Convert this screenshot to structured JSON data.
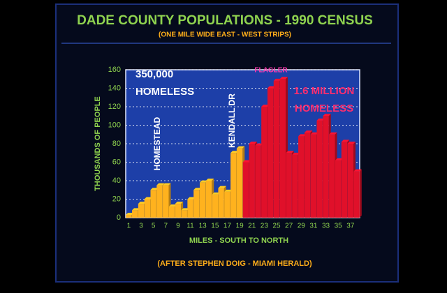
{
  "chart_data": {
    "type": "bar",
    "title": "DADE COUNTY POPULATIONS - 1990 CENSUS",
    "subtitle": "(ONE MILE WIDE EAST - WEST STRIPS)",
    "x_label": "MILES - SOUTH TO NORTH",
    "y_label": "THOUSANDS OF PEOPLE",
    "footer": "(AFTER STEPHEN DOIG - MIAMI HERALD)",
    "annotations": [
      "350,000",
      "HOMELESS",
      "HOMESTEAD",
      "KENDALL DR",
      "FLAGLER",
      "1.6 MILLION",
      "HOMELESS"
    ],
    "categories": [
      "1",
      null,
      "3",
      null,
      "5",
      null,
      "7",
      null,
      "9",
      null,
      "11",
      null,
      "13",
      null,
      "15",
      null,
      "17",
      null,
      "19",
      null,
      "21",
      null,
      "23",
      null,
      "25",
      null,
      "27",
      null,
      "29",
      null,
      "31",
      null,
      "33",
      null,
      "35",
      null,
      "37",
      null
    ],
    "values": [
      3,
      8,
      15,
      20,
      30,
      35,
      35,
      12,
      15,
      8,
      20,
      30,
      38,
      40,
      25,
      32,
      28,
      70,
      75,
      60,
      80,
      78,
      120,
      140,
      148,
      150,
      70,
      68,
      88,
      92,
      90,
      105,
      110,
      90,
      62,
      82,
      80,
      50
    ],
    "colors": [
      "#ffb21e",
      "#ffb21e",
      "#ffb21e",
      "#ffb21e",
      "#ffb21e",
      "#ffb21e",
      "#ffb21e",
      "#ffb21e",
      "#ffb21e",
      "#ffb21e",
      "#ffb21e",
      "#ffb21e",
      "#ffb21e",
      "#ffb21e",
      "#ffb21e",
      "#ffb21e",
      "#ffb21e",
      "#ffb21e",
      "#ffb21e",
      "#e0102a",
      "#e0102a",
      "#e0102a",
      "#e0102a",
      "#e0102a",
      "#e0102a",
      "#e0102a",
      "#e0102a",
      "#e0102a",
      "#e0102a",
      "#e0102a",
      "#e0102a",
      "#e0102a",
      "#e0102a",
      "#e0102a",
      "#e0102a",
      "#e0102a",
      "#e0102a",
      "#e0102a"
    ],
    "ylim": [
      0,
      160
    ],
    "yticks": [
      0,
      20,
      40,
      60,
      80,
      100,
      120,
      140,
      160
    ],
    "grid": true
  }
}
